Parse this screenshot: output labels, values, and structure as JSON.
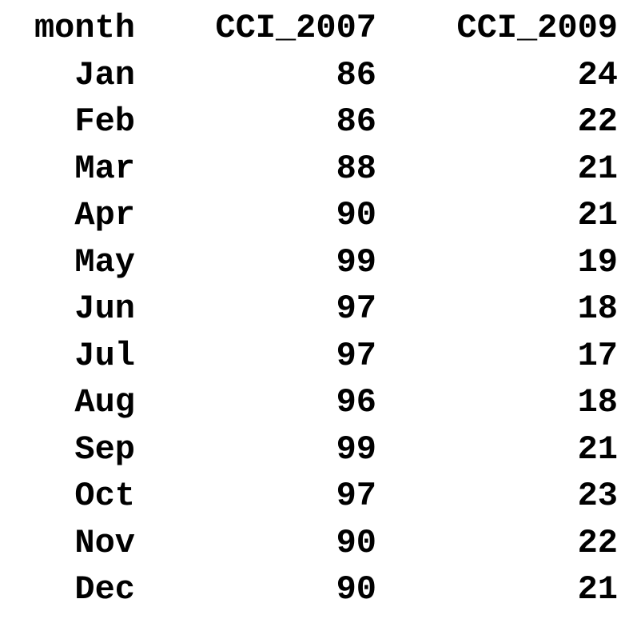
{
  "table": {
    "headers": [
      "month",
      "CCI_2007",
      "CCI_2009"
    ],
    "rows": [
      [
        "Jan",
        "86",
        "24"
      ],
      [
        "Feb",
        "86",
        "22"
      ],
      [
        "Mar",
        "88",
        "21"
      ],
      [
        "Apr",
        "90",
        "21"
      ],
      [
        "May",
        "99",
        "19"
      ],
      [
        "Jun",
        "97",
        "18"
      ],
      [
        "Jul",
        "97",
        "17"
      ],
      [
        "Aug",
        "96",
        "18"
      ],
      [
        "Sep",
        "99",
        "21"
      ],
      [
        "Oct",
        "97",
        "23"
      ],
      [
        "Nov",
        "90",
        "22"
      ],
      [
        "Dec",
        "90",
        "21"
      ]
    ]
  },
  "colors": {
    "text": "#000000",
    "background": "#ffffff"
  }
}
